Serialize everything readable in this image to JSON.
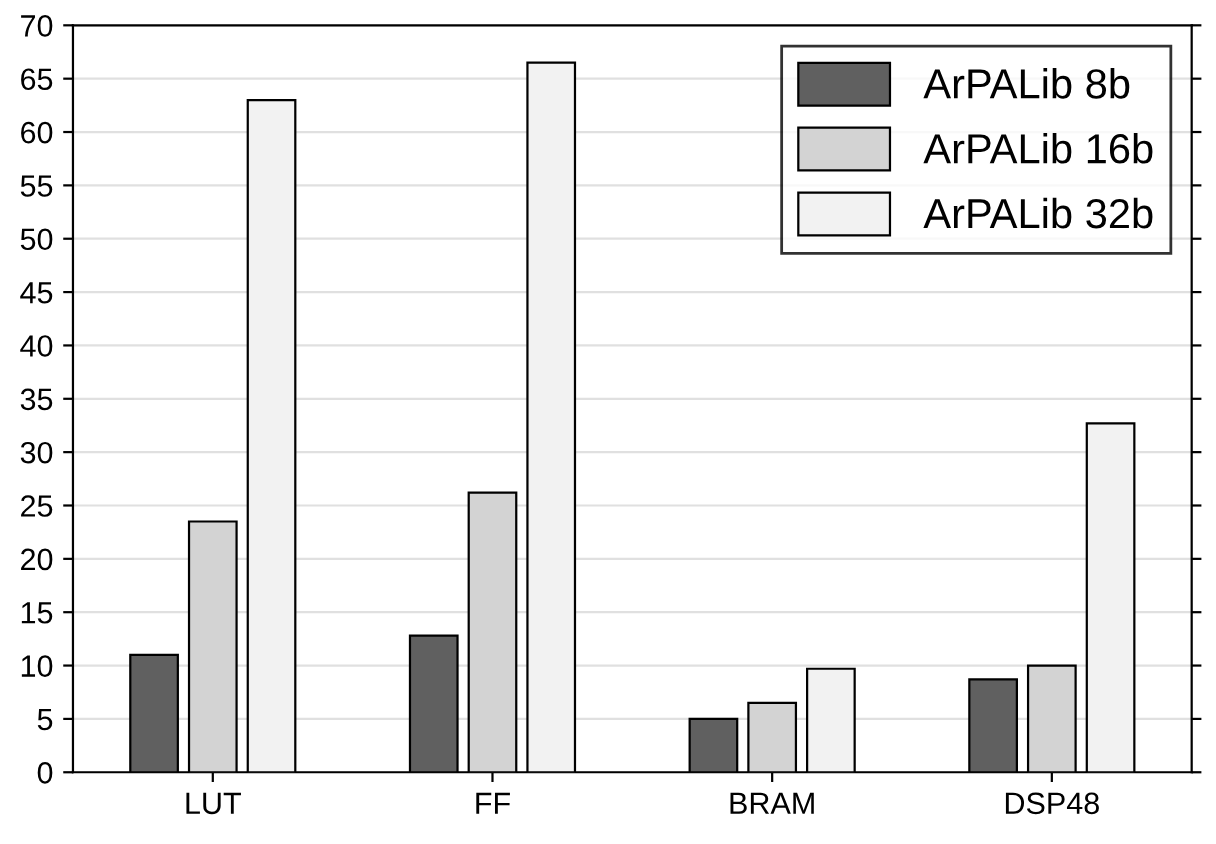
{
  "chart_data": {
    "type": "bar",
    "categories": [
      "LUT",
      "FF",
      "BRAM",
      "DSP48"
    ],
    "series": [
      {
        "name": "ArPALib 8b",
        "color": "#606060",
        "values": [
          11,
          12.8,
          5,
          8.7
        ]
      },
      {
        "name": "ArPALib 16b",
        "color": "#d3d3d3",
        "values": [
          23.5,
          26.2,
          6.5,
          10
        ]
      },
      {
        "name": "ArPALib 32b",
        "color": "#f2f2f2",
        "values": [
          63,
          66.5,
          9.7,
          32.7
        ]
      }
    ],
    "ylim": [
      0,
      70
    ],
    "yticks": [
      0,
      5,
      10,
      15,
      20,
      25,
      30,
      35,
      40,
      45,
      50,
      55,
      60,
      65,
      70
    ],
    "grid": "y",
    "legend": "top right"
  }
}
